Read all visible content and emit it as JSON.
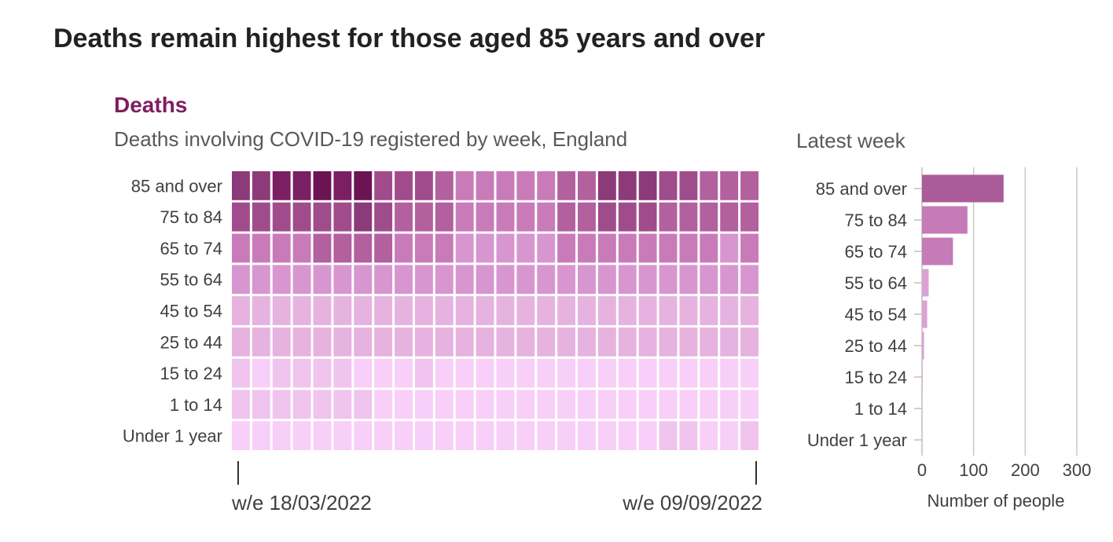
{
  "title": "Deaths remain highest for those aged 85 years and over",
  "heading": "Deaths",
  "subtitle": "Deaths involving COVID-19 registered by week, England",
  "latest_label": "Latest week",
  "colors": {
    "scale": [
      "#f8cff8",
      "#f0c4ee",
      "#e6b2e0",
      "#d896d0",
      "#c97bb9",
      "#b3609e",
      "#a04c8c",
      "#8d3a7a",
      "#7a1f63",
      "#6b1353"
    ],
    "bar_colors": [
      "#aa5c9a",
      "#c47bb7",
      "#c47bb7",
      "#dba3d3",
      "#dba3d3",
      "#dba3d3",
      "#dba3d3",
      "#dba3d3",
      "#dba3d3"
    ],
    "title_accent": "#7f1d5e"
  },
  "chart_data": [
    {
      "type": "heatmap",
      "title": "Deaths involving COVID-19 registered by week, England",
      "rows": [
        "85 and over",
        "75 to 84",
        "65 to 74",
        "55 to 64",
        "45 to 54",
        "25 to 44",
        "15 to 24",
        "1 to 14",
        "Under 1 year"
      ],
      "columns_count": 26,
      "x_tick_labels": [
        "w/e 18/03/2022",
        "w/e 09/09/2022"
      ],
      "intensity": [
        [
          7,
          7,
          8,
          8,
          9,
          8,
          9,
          6,
          6,
          6,
          5,
          4,
          4,
          4,
          4,
          4,
          5,
          5,
          7,
          7,
          7,
          6,
          6,
          5,
          5,
          5
        ],
        [
          6,
          6,
          6,
          6,
          6,
          6,
          7,
          6,
          5,
          5,
          5,
          4,
          4,
          4,
          4,
          4,
          5,
          5,
          6,
          6,
          6,
          5,
          5,
          5,
          5,
          5
        ],
        [
          4,
          4,
          4,
          4,
          5,
          5,
          5,
          5,
          4,
          4,
          4,
          3,
          3,
          3,
          3,
          3,
          4,
          4,
          4,
          4,
          4,
          4,
          4,
          4,
          3,
          4
        ],
        [
          3,
          3,
          3,
          3,
          3,
          3,
          3,
          3,
          3,
          3,
          3,
          3,
          3,
          3,
          3,
          3,
          3,
          3,
          3,
          3,
          3,
          3,
          3,
          3,
          3,
          3
        ],
        [
          2,
          2,
          2,
          2,
          2,
          2,
          2,
          2,
          2,
          2,
          2,
          2,
          2,
          2,
          2,
          2,
          2,
          2,
          2,
          2,
          2,
          2,
          2,
          2,
          2,
          2
        ],
        [
          2,
          2,
          2,
          2,
          2,
          2,
          2,
          2,
          2,
          2,
          2,
          2,
          2,
          2,
          2,
          2,
          2,
          2,
          2,
          2,
          2,
          2,
          2,
          2,
          2,
          2
        ],
        [
          1,
          0,
          1,
          1,
          1,
          1,
          0,
          0,
          0,
          1,
          0,
          0,
          0,
          0,
          0,
          0,
          0,
          0,
          0,
          0,
          0,
          0,
          0,
          0,
          0,
          0
        ],
        [
          1,
          1,
          1,
          1,
          1,
          1,
          1,
          0,
          0,
          0,
          0,
          0,
          0,
          0,
          0,
          0,
          0,
          0,
          0,
          0,
          0,
          0,
          0,
          0,
          0,
          0
        ],
        [
          0,
          0,
          0,
          0,
          0,
          0,
          0,
          0,
          0,
          0,
          0,
          0,
          0,
          0,
          0,
          0,
          0,
          0,
          0,
          0,
          0,
          1,
          1,
          0,
          0,
          1
        ]
      ]
    },
    {
      "type": "bar",
      "title": "Latest week",
      "categories": [
        "85 and over",
        "75 to 84",
        "65 to 74",
        "55 to 64",
        "45 to 54",
        "25 to 44",
        "15 to 24",
        "1 to 14",
        "Under 1 year"
      ],
      "values": [
        158,
        88,
        60,
        13,
        10,
        4,
        1,
        0,
        0
      ],
      "xlabel": "Number of people",
      "xlim": [
        0,
        300
      ],
      "x_ticks": [
        0,
        100,
        200,
        300
      ],
      "grid": true
    }
  ]
}
